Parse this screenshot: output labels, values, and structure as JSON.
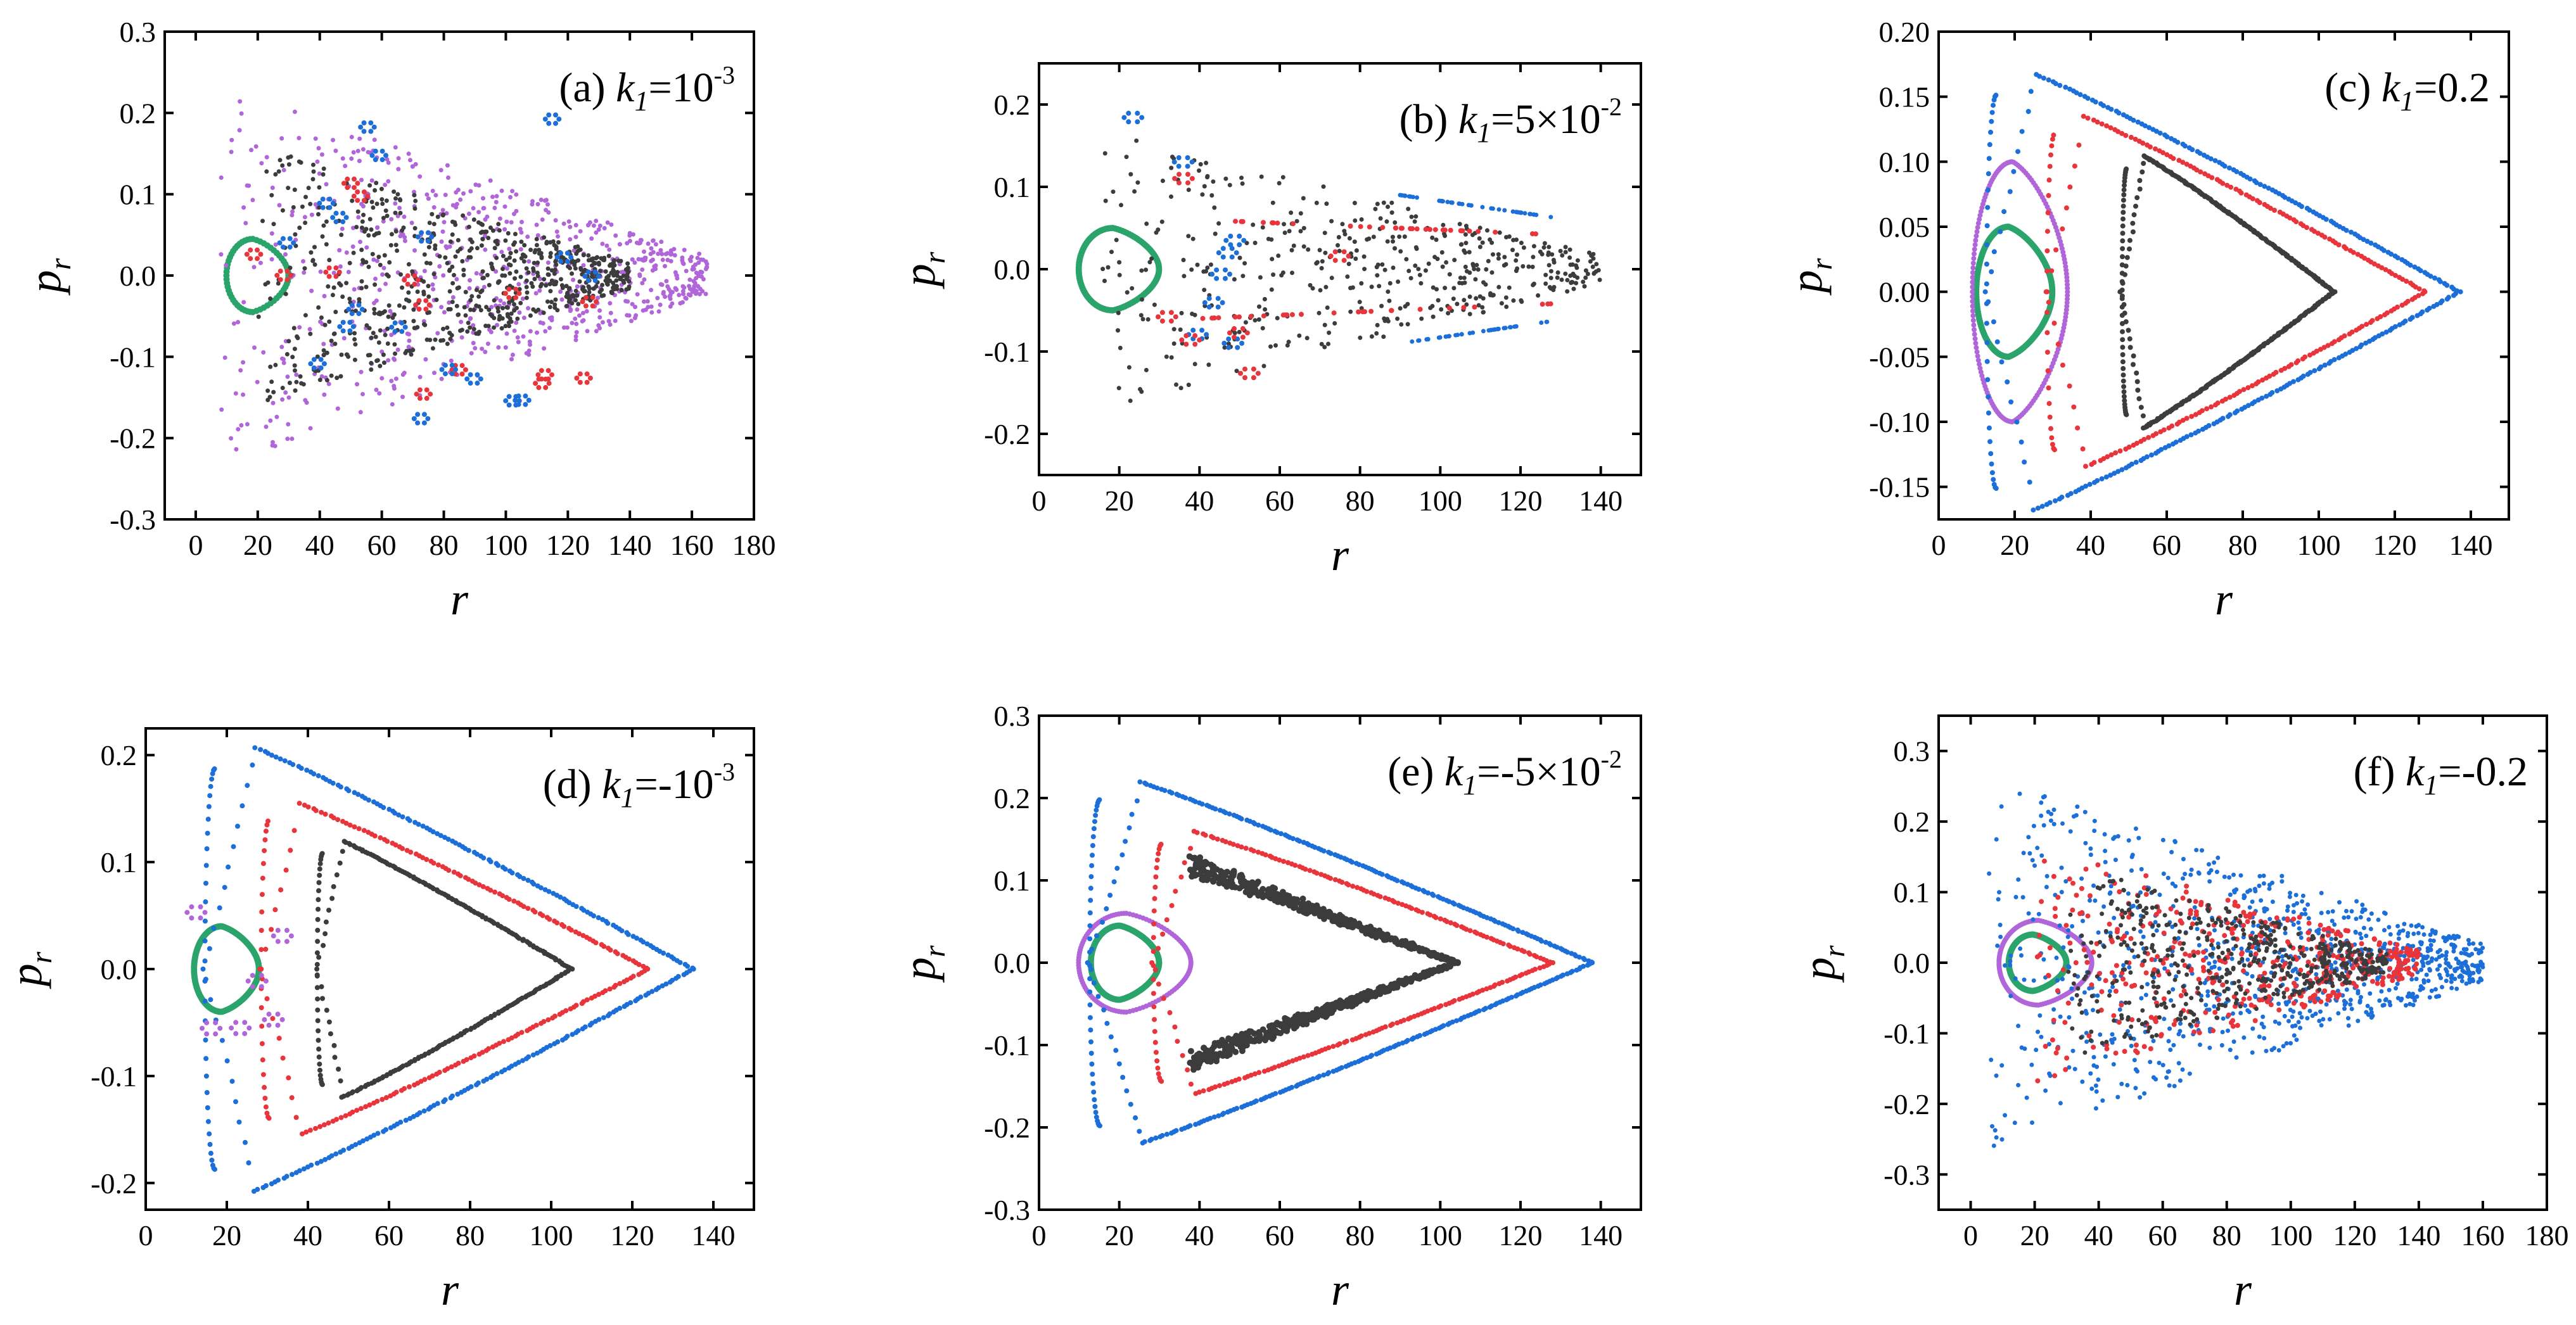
{
  "figure": {
    "colors": {
      "gray": "#3c3c3c",
      "red": "#e8353c",
      "blue": "#1c6fd8",
      "green": "#2aa46a",
      "purple": "#b066d8"
    }
  },
  "chart_data": [
    {
      "id": "a",
      "type": "scatter",
      "title": "(a) k1=10-3",
      "label": {
        "prefix": "(a) ",
        "k": "k",
        "sub": "1",
        "eq": "=10",
        "sup": "-3"
      },
      "xlabel": "r",
      "ylabel": "p",
      "ylabel_sub": "r",
      "xlim": [
        -10,
        180
      ],
      "ylim": [
        -0.3,
        0.3
      ],
      "xticks": [
        0,
        20,
        40,
        60,
        80,
        100,
        120,
        140,
        160,
        180
      ],
      "xtick_labels": [
        "0",
        "20",
        "40",
        "60",
        "80",
        "100",
        "120",
        "140",
        "160",
        "180"
      ],
      "yticks": [
        -0.3,
        -0.2,
        -0.1,
        0.0,
        0.1,
        0.2,
        0.3
      ],
      "ytick_labels": [
        "-0.3",
        "-0.2",
        "-0.1",
        "0.0",
        "0.1",
        "0.2",
        "0.3"
      ],
      "orbits": [
        {
          "color": "green",
          "kind": "loop",
          "r_min": 10,
          "r_max": 30,
          "p_amp": 0.045,
          "n": 60,
          "size": 5
        },
        {
          "color": "purple",
          "kind": "chaos",
          "r_min": 8,
          "r_max": 165,
          "p_amp": 0.235,
          "n": 700,
          "size": 3.5
        },
        {
          "color": "gray",
          "kind": "chaos",
          "r_min": 20,
          "r_max": 140,
          "p_amp": 0.16,
          "n": 700,
          "size": 3.5
        },
        {
          "color": "red",
          "kind": "islands",
          "r_min": 15,
          "r_max": 130,
          "p_amp": 0.15,
          "n": 14,
          "size": 4
        },
        {
          "color": "blue",
          "kind": "islands",
          "r_min": 15,
          "r_max": 135,
          "p_amp": 0.2,
          "n": 18,
          "size": 4
        }
      ]
    },
    {
      "id": "b",
      "type": "scatter",
      "title": "(b) k1=5×10-2",
      "label": {
        "prefix": "(b) ",
        "k": "k",
        "sub": "1",
        "eq": "=5×10",
        "sup": "-2"
      },
      "xlabel": "r",
      "ylabel": "p",
      "ylabel_sub": "r",
      "xlim": [
        0,
        150
      ],
      "ylim": [
        -0.25,
        0.25
      ],
      "xticks": [
        0,
        20,
        40,
        60,
        80,
        100,
        120,
        140
      ],
      "xtick_labels": [
        "0",
        "20",
        "40",
        "60",
        "80",
        "100",
        "120",
        "140"
      ],
      "yticks": [
        -0.2,
        -0.1,
        0.0,
        0.1,
        0.2
      ],
      "ytick_labels": [
        "-0.2",
        "-0.1",
        "0.0",
        "0.1",
        "0.2"
      ],
      "orbits": [
        {
          "color": "green",
          "kind": "loop",
          "r_min": 10,
          "r_max": 30,
          "p_amp": 0.05,
          "n": 120,
          "size": 5
        },
        {
          "color": "gray",
          "kind": "chaos",
          "r_min": 15,
          "r_max": 140,
          "p_amp": 0.17,
          "n": 450,
          "size": 3.5
        },
        {
          "color": "blue",
          "kind": "segments",
          "r_min": 90,
          "r_max": 128,
          "p_amp": 0.09,
          "n": 80,
          "size": 3.5
        },
        {
          "color": "red",
          "kind": "segments",
          "r_min": 40,
          "r_max": 128,
          "p_amp": 0.06,
          "n": 60,
          "size": 4
        },
        {
          "color": "blue",
          "kind": "islands",
          "r_min": 18,
          "r_max": 50,
          "p_amp": 0.19,
          "n": 8,
          "size": 4
        },
        {
          "color": "red",
          "kind": "islands",
          "r_min": 25,
          "r_max": 75,
          "p_amp": 0.15,
          "n": 6,
          "size": 4
        }
      ]
    },
    {
      "id": "c",
      "type": "scatter",
      "title": "(c) k1=0.2",
      "label": {
        "prefix": "(c) ",
        "k": "k",
        "sub": "1",
        "eq": "=0.2",
        "sup": ""
      },
      "xlabel": "r",
      "ylabel": "p",
      "ylabel_sub": "r",
      "xlim": [
        0,
        150
      ],
      "ylim": [
        -0.175,
        0.2
      ],
      "xticks": [
        0,
        20,
        40,
        60,
        80,
        100,
        120,
        140
      ],
      "xtick_labels": [
        "0",
        "20",
        "40",
        "60",
        "80",
        "100",
        "120",
        "140"
      ],
      "yticks": [
        -0.15,
        -0.1,
        -0.05,
        0.0,
        0.05,
        0.1,
        0.15,
        0.2
      ],
      "ytick_labels": [
        "-0.15",
        "-0.10",
        "-0.05",
        "0.00",
        "0.05",
        "0.10",
        "0.15",
        "0.20"
      ],
      "orbits": [
        {
          "color": "green",
          "kind": "loop",
          "r_min": 10,
          "r_max": 30,
          "p_amp": 0.05,
          "n": 160,
          "size": 5
        },
        {
          "color": "purple",
          "kind": "loop",
          "r_min": 9,
          "r_max": 34,
          "p_amp": 0.1,
          "n": 170,
          "size": 4
        },
        {
          "color": "blue",
          "kind": "horseshoe",
          "r_min": 12,
          "r_max": 137,
          "p_amp": 0.168,
          "n": 260,
          "size": 4
        },
        {
          "color": "red",
          "kind": "horseshoe",
          "r_min": 28,
          "r_max": 128,
          "p_amp": 0.135,
          "n": 200,
          "size": 4
        },
        {
          "color": "gray",
          "kind": "horseshoe",
          "r_min": 48,
          "r_max": 104,
          "p_amp": 0.105,
          "n": 380,
          "size": 4
        }
      ]
    },
    {
      "id": "d",
      "type": "scatter",
      "title": "(d) k1=-10-3",
      "label": {
        "prefix": "(d) ",
        "k": "k",
        "sub": "1",
        "eq": "=-10",
        "sup": "-3"
      },
      "xlabel": "r",
      "ylabel": "p",
      "ylabel_sub": "r",
      "xlim": [
        0,
        150
      ],
      "ylim": [
        -0.225,
        0.225
      ],
      "xticks": [
        0,
        20,
        40,
        60,
        80,
        100,
        120,
        140
      ],
      "xtick_labels": [
        "0",
        "20",
        "40",
        "60",
        "80",
        "100",
        "120",
        "140"
      ],
      "yticks": [
        -0.2,
        -0.1,
        0.0,
        0.1,
        0.2
      ],
      "ytick_labels": [
        "-0.2",
        "-0.1",
        "0.0",
        "0.1",
        "0.2"
      ],
      "orbits": [
        {
          "color": "green",
          "kind": "loop",
          "r_min": 12,
          "r_max": 28,
          "p_amp": 0.04,
          "n": 150,
          "size": 5
        },
        {
          "color": "blue",
          "kind": "horseshoe",
          "r_min": 14,
          "r_max": 135,
          "p_amp": 0.208,
          "n": 260,
          "size": 4
        },
        {
          "color": "red",
          "kind": "horseshoe",
          "r_min": 28,
          "r_max": 124,
          "p_amp": 0.155,
          "n": 200,
          "size": 4
        },
        {
          "color": "gray",
          "kind": "horseshoe",
          "r_min": 42,
          "r_max": 105,
          "p_amp": 0.12,
          "n": 260,
          "size": 4
        },
        {
          "color": "purple",
          "kind": "islands",
          "r_min": 9,
          "r_max": 34,
          "p_amp": 0.07,
          "n": 6,
          "size": 4
        }
      ]
    },
    {
      "id": "e",
      "type": "scatter",
      "title": "(e) k1=-5×10-2",
      "label": {
        "prefix": "(e) ",
        "k": "k",
        "sub": "1",
        "eq": "=-5×10",
        "sup": "-2"
      },
      "xlabel": "r",
      "ylabel": "p",
      "ylabel_sub": "r",
      "xlim": [
        0,
        150
      ],
      "ylim": [
        -0.3,
        0.3
      ],
      "xticks": [
        0,
        20,
        40,
        60,
        80,
        100,
        120,
        140
      ],
      "xtick_labels": [
        "0",
        "20",
        "40",
        "60",
        "80",
        "100",
        "120",
        "140"
      ],
      "yticks": [
        -0.3,
        -0.2,
        -0.1,
        0.0,
        0.1,
        0.2,
        0.3
      ],
      "ytick_labels": [
        "-0.3",
        "-0.2",
        "-0.1",
        "0.0",
        "0.1",
        "0.2",
        "0.3"
      ],
      "orbits": [
        {
          "color": "green",
          "kind": "loop",
          "r_min": 13,
          "r_max": 30,
          "p_amp": 0.045,
          "n": 150,
          "size": 5
        },
        {
          "color": "purple",
          "kind": "loop",
          "r_min": 10,
          "r_max": 38,
          "p_amp": 0.06,
          "n": 120,
          "size": 4
        },
        {
          "color": "blue",
          "kind": "horseshoe",
          "r_min": 12,
          "r_max": 138,
          "p_amp": 0.22,
          "n": 320,
          "size": 4
        },
        {
          "color": "red",
          "kind": "horseshoe",
          "r_min": 28,
          "r_max": 128,
          "p_amp": 0.16,
          "n": 220,
          "size": 4
        },
        {
          "color": "gray",
          "kind": "band",
          "r_min": 38,
          "r_max": 104,
          "p_amp": 0.125,
          "n": 900,
          "size": 5
        }
      ]
    },
    {
      "id": "f",
      "type": "scatter",
      "title": "(f) k1=-0.2",
      "label": {
        "prefix": "(f) ",
        "k": "k",
        "sub": "1",
        "eq": "=-0.2",
        "sup": ""
      },
      "xlabel": "r",
      "ylabel": "p",
      "ylabel_sub": "r",
      "xlim": [
        -10,
        180
      ],
      "ylim": [
        -0.35,
        0.35
      ],
      "xticks": [
        0,
        20,
        40,
        60,
        80,
        100,
        120,
        140,
        160,
        180
      ],
      "xtick_labels": [
        "0",
        "20",
        "40",
        "60",
        "80",
        "100",
        "120",
        "140",
        "160",
        "180"
      ],
      "yticks": [
        -0.3,
        -0.2,
        -0.1,
        0.0,
        0.1,
        0.2,
        0.3
      ],
      "ytick_labels": [
        "-0.3",
        "-0.2",
        "-0.1",
        "0.0",
        "0.1",
        "0.2",
        "0.3"
      ],
      "orbits": [
        {
          "color": "green",
          "kind": "loop",
          "r_min": 12,
          "r_max": 30,
          "p_amp": 0.04,
          "n": 150,
          "size": 5
        },
        {
          "color": "purple",
          "kind": "loop",
          "r_min": 9,
          "r_max": 38,
          "p_amp": 0.06,
          "n": 140,
          "size": 4
        },
        {
          "color": "blue",
          "kind": "chaos",
          "r_min": 5,
          "r_max": 160,
          "p_amp": 0.265,
          "n": 900,
          "size": 3.5
        },
        {
          "color": "red",
          "kind": "chaos",
          "r_min": 20,
          "r_max": 140,
          "p_amp": 0.17,
          "n": 450,
          "size": 4
        },
        {
          "color": "gray",
          "kind": "chaos",
          "r_min": 30,
          "r_max": 130,
          "p_amp": 0.14,
          "n": 500,
          "size": 3.5
        }
      ]
    }
  ]
}
